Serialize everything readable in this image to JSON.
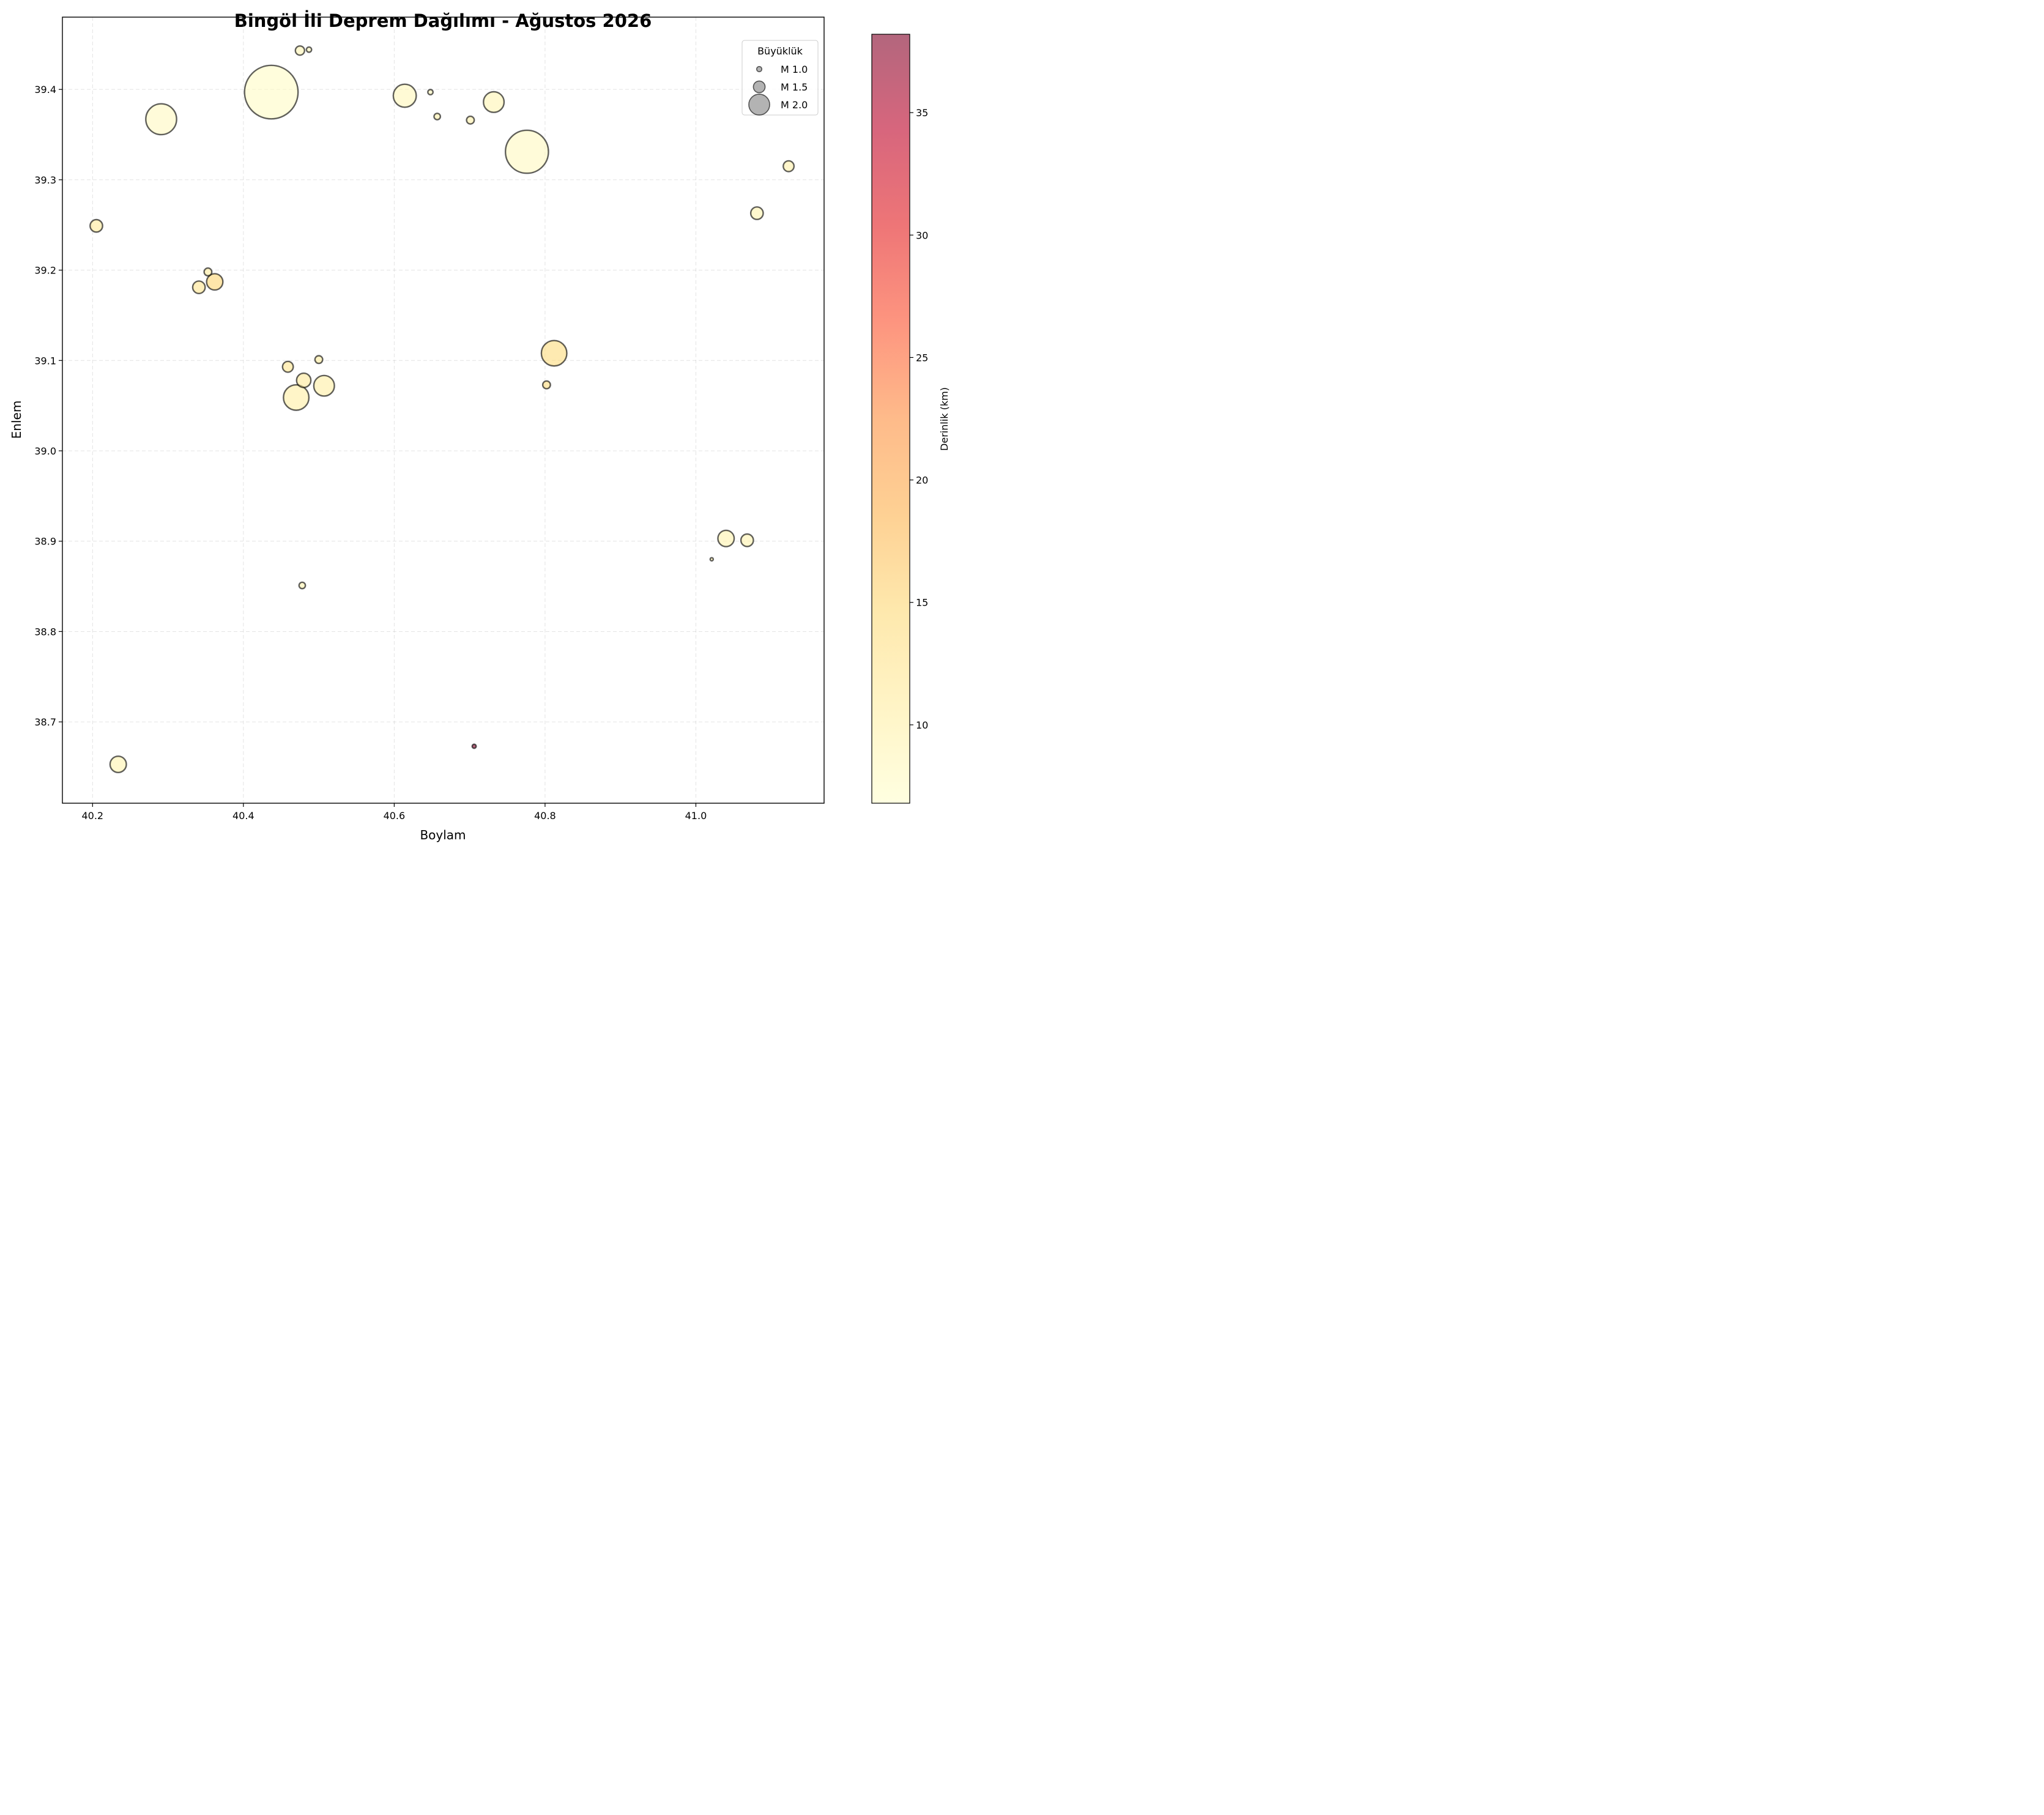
{
  "chart_data": {
    "type": "scatter",
    "title": "Bingöl İli Deprem Dağılımı - Ağustos 2026",
    "xlabel": "Boylam",
    "ylabel": "Enlem",
    "xlim": [
      40.16,
      41.17
    ],
    "ylim": [
      38.61,
      39.48
    ],
    "xticks": [
      40.2,
      40.4,
      40.6,
      40.8,
      41.0
    ],
    "xtick_labels": [
      "40.2",
      "40.4",
      "40.6",
      "40.8",
      "41.0"
    ],
    "yticks": [
      38.7,
      38.8,
      38.9,
      39.0,
      39.1,
      39.2,
      39.3,
      39.4
    ],
    "ytick_labels": [
      "38.7",
      "38.8",
      "38.9",
      "39.0",
      "39.1",
      "39.2",
      "39.3",
      "39.4"
    ],
    "grid": true,
    "size_encoding": "magnitude",
    "color_encoding": "depth",
    "colormap": "YlOrRd",
    "colormap_stops": [
      "#ffffcc",
      "#ffeda0",
      "#fed976",
      "#feb24c",
      "#fd8d3c",
      "#fc4e2a",
      "#e31a1c",
      "#bd0026",
      "#800026"
    ],
    "marker_alpha": 0.6,
    "marker_edge_color": "#000000",
    "colorbar": {
      "label": "Derinlik (km)",
      "range": [
        6.8,
        38.2
      ],
      "ticks": [
        10,
        15,
        20,
        25,
        30,
        35
      ],
      "tick_labels": [
        "10",
        "15",
        "20",
        "25",
        "30",
        "35"
      ]
    },
    "legend": {
      "title": "Büyüklük",
      "position": "top-right",
      "marker_color": "#808080",
      "entries": [
        {
          "label": "M 1.0",
          "magnitude": 1.0
        },
        {
          "label": "M 1.5",
          "magnitude": 1.5
        },
        {
          "label": "M 2.0",
          "magnitude": 2.0
        }
      ]
    },
    "points": [
      {
        "lon": 40.437,
        "lat": 39.397,
        "mag": 2.9,
        "depth": 7.5
      },
      {
        "lon": 40.776,
        "lat": 39.331,
        "mag": 2.6,
        "depth": 8.0
      },
      {
        "lon": 40.291,
        "lat": 39.367,
        "mag": 2.2,
        "depth": 8.0
      },
      {
        "lon": 40.614,
        "lat": 39.393,
        "mag": 1.9,
        "depth": 8.5
      },
      {
        "lon": 40.732,
        "lat": 39.386,
        "mag": 1.8,
        "depth": 9.0
      },
      {
        "lon": 40.475,
        "lat": 39.443,
        "mag": 1.2,
        "depth": 9.0
      },
      {
        "lon": 40.487,
        "lat": 39.444,
        "mag": 0.9,
        "depth": 8.5
      },
      {
        "lon": 40.648,
        "lat": 39.397,
        "mag": 0.9,
        "depth": 8.5
      },
      {
        "lon": 40.657,
        "lat": 39.37,
        "mag": 1.0,
        "depth": 10.0
      },
      {
        "lon": 40.701,
        "lat": 39.366,
        "mag": 1.1,
        "depth": 10.0
      },
      {
        "lon": 41.123,
        "lat": 39.315,
        "mag": 1.3,
        "depth": 10.0
      },
      {
        "lon": 41.081,
        "lat": 39.263,
        "mag": 1.4,
        "depth": 9.5
      },
      {
        "lon": 40.205,
        "lat": 39.249,
        "mag": 1.4,
        "depth": 11.5
      },
      {
        "lon": 40.353,
        "lat": 39.198,
        "mag": 1.1,
        "depth": 11.0
      },
      {
        "lon": 40.341,
        "lat": 39.181,
        "mag": 1.4,
        "depth": 12.5
      },
      {
        "lon": 40.362,
        "lat": 39.187,
        "mag": 1.6,
        "depth": 15.0
      },
      {
        "lon": 40.459,
        "lat": 39.093,
        "mag": 1.3,
        "depth": 12.5
      },
      {
        "lon": 40.5,
        "lat": 39.101,
        "mag": 1.1,
        "depth": 11.0
      },
      {
        "lon": 40.48,
        "lat": 39.078,
        "mag": 1.5,
        "depth": 11.5
      },
      {
        "lon": 40.507,
        "lat": 39.072,
        "mag": 1.8,
        "depth": 10.5
      },
      {
        "lon": 40.47,
        "lat": 39.059,
        "mag": 2.0,
        "depth": 10.5
      },
      {
        "lon": 40.812,
        "lat": 39.108,
        "mag": 2.0,
        "depth": 14.0
      },
      {
        "lon": 40.802,
        "lat": 39.073,
        "mag": 1.1,
        "depth": 14.0
      },
      {
        "lon": 41.04,
        "lat": 38.903,
        "mag": 1.6,
        "depth": 9.5
      },
      {
        "lon": 41.068,
        "lat": 38.901,
        "mag": 1.4,
        "depth": 9.5
      },
      {
        "lon": 41.021,
        "lat": 38.88,
        "mag": 0.7,
        "depth": 9.5
      },
      {
        "lon": 40.478,
        "lat": 38.851,
        "mag": 1.0,
        "depth": 9.5
      },
      {
        "lon": 40.234,
        "lat": 38.653,
        "mag": 1.6,
        "depth": 9.5
      },
      {
        "lon": 40.706,
        "lat": 38.673,
        "mag": 0.8,
        "depth": 38.2
      }
    ]
  }
}
